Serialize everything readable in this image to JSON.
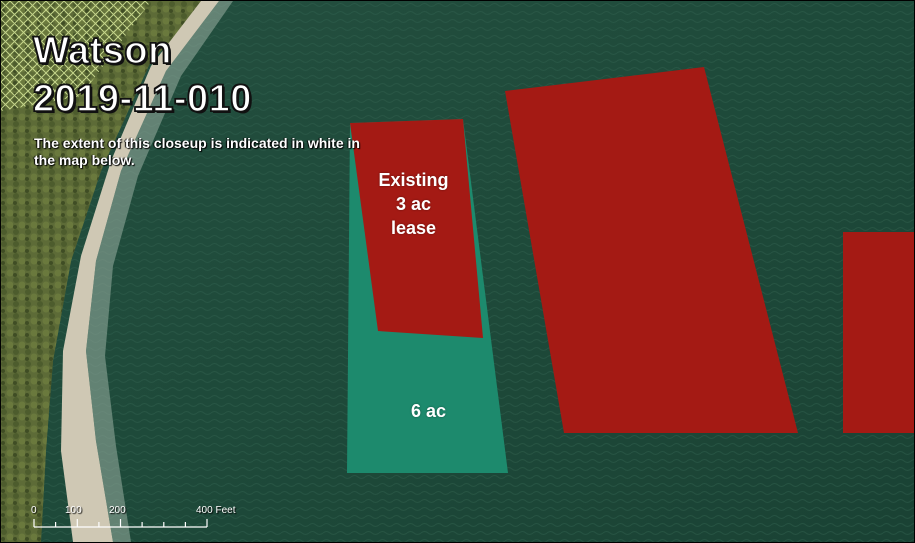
{
  "map": {
    "title_line1": "Watson",
    "title_line2": "2019-11-010",
    "extent_note": "The extent of this closeup is indicated in white in the map below.",
    "existing_lease_label": [
      "Existing",
      "3 ac",
      "lease"
    ],
    "proposed_area_label": "6 ac",
    "scale_bar": {
      "ticks": [
        "0",
        "100",
        "200",
        "400 Feet"
      ],
      "unit": "Feet"
    },
    "colors": {
      "water": "#1f4a3a",
      "lease_red": "#a41a14",
      "proposed_teal": "#1d8a6d",
      "land": "#5d6b37",
      "beach": "#cfc8b4",
      "text": "#ffffff"
    }
  }
}
